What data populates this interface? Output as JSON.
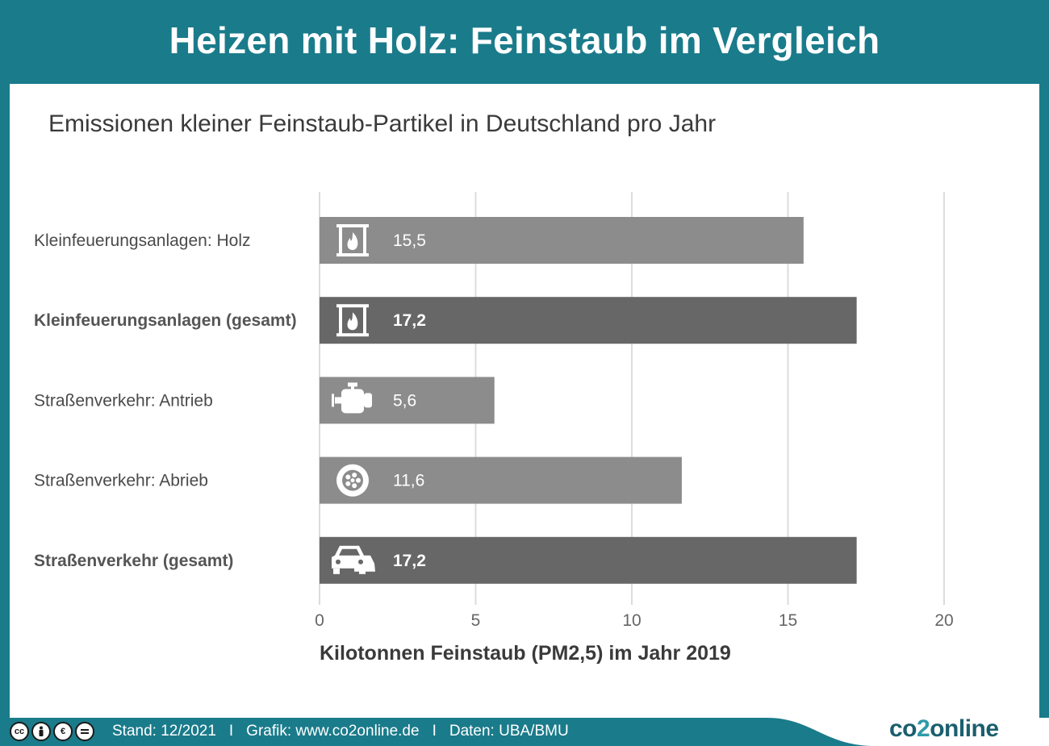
{
  "header": {
    "title": "Heizen mit Holz: Feinstaub im Vergleich"
  },
  "subtitle": "Emissionen kleiner Feinstaub-Partikel in Deutschland pro Jahr",
  "chart_data": {
    "type": "bar",
    "orientation": "horizontal",
    "categories": [
      "Kleinfeuerungsanlagen: Holz",
      "Kleinfeuerungsanlagen (gesamt)",
      "Straßenverkehr: Antrieb",
      "Straßenverkehr: Abrieb",
      "Straßenverkehr (gesamt)"
    ],
    "values": [
      15.5,
      17.2,
      5.6,
      11.6,
      17.2
    ],
    "value_labels": [
      "15,5",
      "17,2",
      "5,6",
      "11,6",
      "17,2"
    ],
    "bold": [
      false,
      true,
      false,
      false,
      true
    ],
    "icons": [
      "fireplace-icon",
      "fireplace-icon",
      "engine-icon",
      "wheel-icon",
      "cars-icon"
    ],
    "colors": {
      "light": "#8c8c8c",
      "dark": "#676767"
    },
    "xlabel": "Kilotonnen Feinstaub (PM2,5) im Jahr 2019",
    "xlim": [
      0,
      20
    ],
    "xticks": [
      0,
      5,
      10,
      15,
      20
    ],
    "grid": true
  },
  "footer": {
    "stand": "Stand: 12/2021",
    "grafik": "Grafik: www.co2online.de",
    "daten": "Daten: UBA/BMU",
    "separator": "I",
    "logo_a": "co",
    "logo_b": "2",
    "logo_c": "online",
    "license_icons": [
      "cc-icon",
      "by-icon",
      "nc-icon",
      "nd-icon"
    ]
  },
  "theme": {
    "accent": "#1a7b8b",
    "bar_light": "#8c8c8c",
    "bar_dark": "#676767"
  }
}
